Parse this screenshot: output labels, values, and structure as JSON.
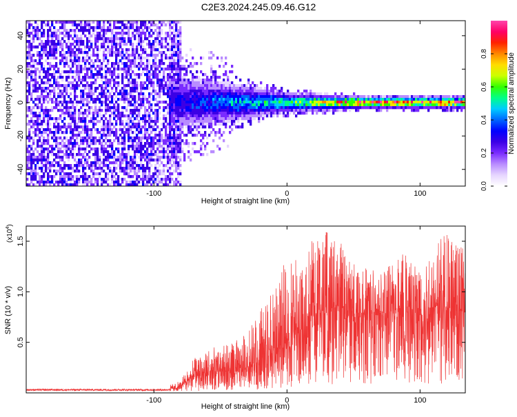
{
  "title": "C2E3.2024.245.09.46.G12",
  "chart_data": [
    {
      "type": "heatmap",
      "xlabel": "Height of straight line (km)",
      "ylabel": "Frequency (Hz)",
      "xlim": [
        -196,
        134
      ],
      "ylim": [
        -50,
        49
      ],
      "xticks": [
        -100,
        0,
        100
      ],
      "yticks": [
        -40,
        -20,
        0,
        20,
        40
      ],
      "colorbar": {
        "label": "Normalized spectral amplitude",
        "range": [
          0,
          1
        ],
        "ticks": [
          0.0,
          0.2,
          0.4,
          0.6,
          0.8
        ],
        "colormap": [
          "#ffffff",
          "#e6d5ff",
          "#b98cff",
          "#7a2cff",
          "#3b00e6",
          "#0000ff",
          "#0066ff",
          "#00ccff",
          "#00ff88",
          "#33ff00",
          "#ccff00",
          "#ffdd00",
          "#ff8800",
          "#ff2200",
          "#ff0066",
          "#ff44aa"
        ]
      },
      "regions": [
        {
          "description_x": [
            -196,
            -80
          ],
          "amplitude": [
            0.0,
            0.3
          ],
          "freq_span": [
            -50,
            49
          ]
        },
        {
          "description_x": [
            -88,
            0
          ],
          "amplitude": [
            0.1,
            0.55
          ],
          "freq_center": 0,
          "freq_halfwidth": [
            18,
            6
          ]
        },
        {
          "description_x": [
            0,
            134
          ],
          "amplitude": [
            0.5,
            0.95
          ],
          "freq_center": 0,
          "freq_halfwidth": [
            5,
            3
          ]
        }
      ]
    },
    {
      "type": "line",
      "xlabel": "Height of straight line (km)",
      "ylabel": "SNR (10 * v/v)",
      "multiplier": "(x10",
      "multiplier_exp": "4",
      "xlim": [
        -196,
        134
      ],
      "ylim": [
        0,
        16500
      ],
      "xticks": [
        -100,
        0,
        100
      ],
      "yticks": [
        5000,
        10000,
        15000
      ],
      "ytick_labels": [
        "0.5",
        "1.0",
        "1.5"
      ],
      "color": "#ee3333",
      "envelope": {
        "x": [
          -196,
          -90,
          -80,
          -70,
          -60,
          -50,
          -40,
          -30,
          -20,
          -10,
          0,
          10,
          20,
          30,
          40,
          50,
          60,
          70,
          80,
          90,
          100,
          110,
          120,
          134
        ],
        "mean": [
          300,
          300,
          600,
          1800,
          2000,
          2200,
          2000,
          2500,
          3500,
          3800,
          5000,
          7000,
          8000,
          8500,
          8500,
          8000,
          7800,
          7800,
          8200,
          8200,
          8200,
          8500,
          8500,
          8000
        ],
        "peak": [
          600,
          700,
          1200,
          3500,
          4500,
          4600,
          5000,
          6000,
          8500,
          10000,
          13500,
          14000,
          15500,
          16000,
          15000,
          13000,
          12500,
          12000,
          14000,
          14500,
          13000,
          14500,
          16500,
          14000
        ]
      }
    }
  ]
}
